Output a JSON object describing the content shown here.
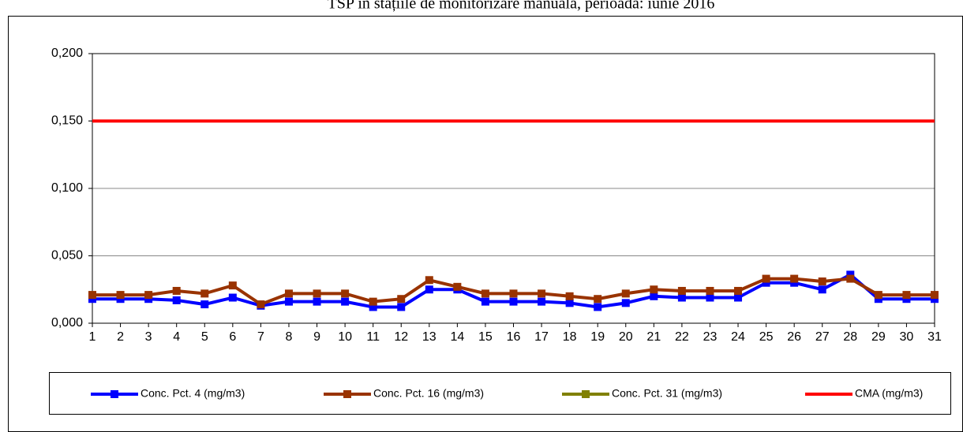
{
  "chart_data": {
    "type": "line",
    "title": "TSP în stațiile de monitorizare manuală, perioada: iunie 2016",
    "categories": [
      "1",
      "2",
      "3",
      "4",
      "5",
      "6",
      "7",
      "8",
      "9",
      "10",
      "11",
      "12",
      "13",
      "14",
      "15",
      "16",
      "17",
      "18",
      "19",
      "20",
      "21",
      "22",
      "23",
      "24",
      "25",
      "26",
      "27",
      "28",
      "29",
      "30",
      "31"
    ],
    "series": [
      {
        "name": "Conc. Pct. 4 (mg/m3)",
        "color": "#0000ff",
        "marker": "square",
        "values": [
          0.018,
          0.018,
          0.018,
          0.017,
          0.014,
          0.019,
          0.013,
          0.016,
          0.016,
          0.016,
          0.012,
          0.012,
          0.025,
          0.025,
          0.016,
          0.016,
          0.016,
          0.015,
          0.012,
          0.015,
          0.02,
          0.019,
          0.019,
          0.019,
          0.03,
          0.03,
          0.025,
          0.036,
          0.018,
          0.018,
          0.018
        ]
      },
      {
        "name": "Conc. Pct. 16 (mg/m3)",
        "color": "#993300",
        "marker": "square",
        "values": [
          0.021,
          0.021,
          0.021,
          0.024,
          0.022,
          0.028,
          0.014,
          0.022,
          0.022,
          0.022,
          0.016,
          0.018,
          0.032,
          0.027,
          0.022,
          0.022,
          0.022,
          0.02,
          0.018,
          0.022,
          0.025,
          0.024,
          0.024,
          0.024,
          0.033,
          0.033,
          0.031,
          0.033,
          0.021,
          0.021,
          0.021
        ]
      },
      {
        "name": "Conc. Pct. 31 (mg/m3)",
        "color": "#808000",
        "marker": "square",
        "values": [
          null,
          null,
          null,
          null,
          null,
          null,
          null,
          null,
          null,
          null,
          null,
          null,
          null,
          null,
          null,
          null,
          null,
          null,
          null,
          null,
          null,
          null,
          null,
          null,
          null,
          null,
          null,
          null,
          null,
          null,
          null
        ]
      },
      {
        "name": "CMA (mg/m3)",
        "color": "#ff0000",
        "marker": "none",
        "values": [
          0.15,
          0.15,
          0.15,
          0.15,
          0.15,
          0.15,
          0.15,
          0.15,
          0.15,
          0.15,
          0.15,
          0.15,
          0.15,
          0.15,
          0.15,
          0.15,
          0.15,
          0.15,
          0.15,
          0.15,
          0.15,
          0.15,
          0.15,
          0.15,
          0.15,
          0.15,
          0.15,
          0.15,
          0.15,
          0.15,
          0.15
        ]
      }
    ],
    "ylim": [
      0,
      0.2
    ],
    "yticks": [
      {
        "value": 0,
        "label": "0,000"
      },
      {
        "value": 0.05,
        "label": "0,050"
      },
      {
        "value": 0.1,
        "label": "0,100"
      },
      {
        "value": 0.15,
        "label": "0,150"
      },
      {
        "value": 0.2,
        "label": "0,200"
      }
    ],
    "grid": true,
    "legend": "bottom"
  }
}
